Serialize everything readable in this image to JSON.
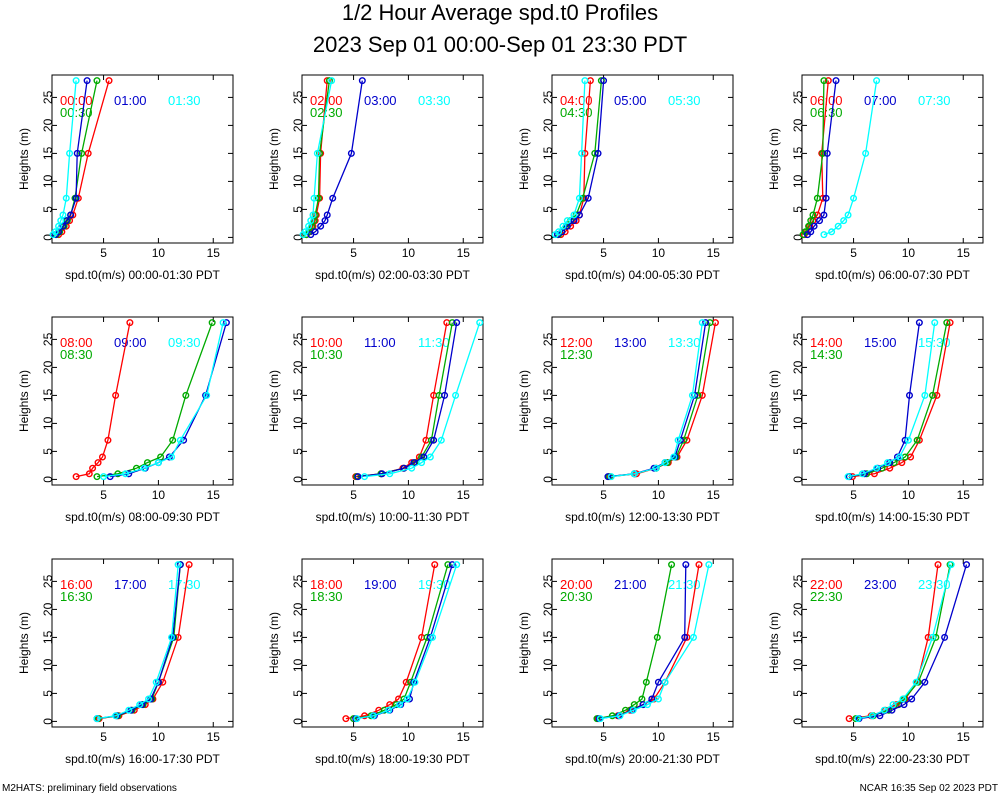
{
  "title_line1": "1/2 Hour Average spd.t0 Profiles",
  "title_line2": "2023 Sep 01 00:00-Sep 01 23:30 PDT",
  "footer_left": "M2HATS: preliminary field observations",
  "footer_right": "NCAR 16:35 Sep 02 2023 PDT",
  "colors": {
    "first": "#ff0000",
    "second": "#00aa00",
    "third": "#0000cc",
    "fourth": "#00ffff"
  },
  "chart_data": {
    "type": "line",
    "y_heights": [
      0.5,
      1,
      2,
      3,
      4,
      7,
      15,
      28
    ],
    "ylabel": "Heights (m)",
    "ylim": [
      -1,
      29
    ],
    "yticks": [
      0,
      5,
      10,
      15,
      20,
      25
    ],
    "xlim": [
      0.3,
      16.8
    ],
    "xticks": [
      5,
      10,
      15
    ],
    "panels": [
      {
        "xlabel": "spd.t0(m/s) 00:00-01:30 PDT",
        "series": [
          {
            "name": "00:00",
            "color": "#ff0000",
            "values": [
              0.9,
              1.2,
              1.6,
              1.9,
              2.2,
              2.7,
              3.6,
              5.5
            ]
          },
          {
            "name": "00:30",
            "color": "#00aa00",
            "values": [
              0.7,
              1.0,
              1.4,
              1.7,
              2.0,
              2.4,
              3.0,
              4.4
            ]
          },
          {
            "name": "01:00",
            "color": "#0000cc",
            "values": [
              0.6,
              0.9,
              1.3,
              1.6,
              2.0,
              2.5,
              2.6,
              3.5
            ]
          },
          {
            "name": "01:30",
            "color": "#00ffff",
            "values": [
              0.4,
              0.6,
              0.9,
              1.1,
              1.3,
              1.6,
              1.9,
              2.5
            ]
          }
        ]
      },
      {
        "xlabel": "spd.t0(m/s) 02:00-03:30 PDT",
        "series": [
          {
            "name": "02:00",
            "color": "#ff0000",
            "values": [
              0.7,
              1.0,
              1.3,
              1.5,
              1.6,
              1.9,
              2.0,
              2.6
            ]
          },
          {
            "name": "02:30",
            "color": "#00aa00",
            "values": [
              0.7,
              0.9,
              1.2,
              1.4,
              1.5,
              1.8,
              1.9,
              2.8
            ]
          },
          {
            "name": "03:00",
            "color": "#0000cc",
            "values": [
              1.1,
              1.5,
              2.0,
              2.4,
              2.6,
              3.1,
              4.8,
              5.8
            ]
          },
          {
            "name": "03:30",
            "color": "#00ffff",
            "values": [
              0.4,
              0.6,
              0.9,
              1.1,
              1.3,
              1.4,
              1.7,
              3.0
            ]
          }
        ]
      },
      {
        "xlabel": "spd.t0(m/s) 04:00-05:30 PDT",
        "series": [
          {
            "name": "04:00",
            "color": "#ff0000",
            "values": [
              1.1,
              1.5,
              2.0,
              2.5,
              2.8,
              3.2,
              3.3,
              3.8
            ]
          },
          {
            "name": "04:30",
            "color": "#00aa00",
            "values": [
              0.9,
              1.2,
              1.6,
              2.0,
              2.5,
              3.1,
              4.2,
              4.8
            ]
          },
          {
            "name": "05:00",
            "color": "#0000cc",
            "values": [
              0.8,
              1.2,
              1.7,
              2.3,
              2.8,
              3.6,
              4.5,
              5.0
            ]
          },
          {
            "name": "05:30",
            "color": "#00ffff",
            "values": [
              0.6,
              0.9,
              1.3,
              1.7,
              2.3,
              2.8,
              3.0,
              3.3
            ]
          }
        ]
      },
      {
        "xlabel": "spd.t0(m/s) 06:00-07:30 PDT",
        "series": [
          {
            "name": "06:00",
            "color": "#ff0000",
            "values": [
              0.5,
              0.7,
              1.0,
              1.3,
              1.7,
              2.2,
              2.1,
              2.7
            ]
          },
          {
            "name": "06:30",
            "color": "#00aa00",
            "values": [
              0.4,
              0.6,
              0.9,
              1.1,
              1.3,
              1.7,
              2.2,
              2.3
            ]
          },
          {
            "name": "07:00",
            "color": "#0000cc",
            "values": [
              0.8,
              1.1,
              1.4,
              1.9,
              2.3,
              2.5,
              2.6,
              3.4
            ]
          },
          {
            "name": "07:30",
            "color": "#00ffff",
            "values": [
              2.3,
              3.0,
              3.6,
              4.1,
              4.5,
              5.0,
              6.1,
              7.1
            ]
          }
        ]
      },
      {
        "xlabel": "spd.t0(m/s) 08:00-09:30 PDT",
        "series": [
          {
            "name": "08:00",
            "color": "#ff0000",
            "values": [
              2.5,
              3.7,
              4.0,
              4.5,
              4.9,
              5.4,
              6.1,
              7.4
            ]
          },
          {
            "name": "08:30",
            "color": "#00aa00",
            "values": [
              4.4,
              6.3,
              8.0,
              9.0,
              10.2,
              11.3,
              12.5,
              14.9
            ]
          },
          {
            "name": "09:00",
            "color": "#0000cc",
            "values": [
              5.6,
              7.3,
              8.8,
              10.0,
              11.0,
              12.3,
              14.3,
              16.2
            ]
          },
          {
            "name": "09:30",
            "color": "#00ffff",
            "values": [
              5.0,
              7.0,
              8.7,
              10.0,
              11.2,
              12.0,
              14.4,
              15.9
            ]
          }
        ]
      },
      {
        "xlabel": "spd.t0(m/s) 10:00-11:30 PDT",
        "series": [
          {
            "name": "10:00",
            "color": "#ff0000",
            "values": [
              5.2,
              7.5,
              9.5,
              10.3,
              11.0,
              11.6,
              12.3,
              13.5
            ]
          },
          {
            "name": "10:30",
            "color": "#00aa00",
            "values": [
              5.3,
              7.5,
              9.6,
              10.6,
              11.2,
              12.1,
              12.8,
              14.0
            ]
          },
          {
            "name": "11:00",
            "color": "#0000cc",
            "values": [
              5.4,
              7.6,
              9.6,
              10.5,
              11.4,
              12.3,
              13.3,
              14.4
            ]
          },
          {
            "name": "11:30",
            "color": "#00ffff",
            "values": [
              6.0,
              8.3,
              10.3,
              11.2,
              12.0,
              13.0,
              14.3,
              16.5
            ]
          }
        ]
      },
      {
        "xlabel": "spd.t0(m/s) 12:00-13:30 PDT",
        "series": [
          {
            "name": "12:00",
            "color": "#ff0000",
            "values": [
              5.6,
              8.0,
              9.8,
              10.9,
              11.7,
              12.6,
              14.0,
              15.2
            ]
          },
          {
            "name": "12:30",
            "color": "#00aa00",
            "values": [
              5.5,
              7.8,
              9.8,
              10.8,
              11.6,
              12.3,
              13.6,
              14.7
            ]
          },
          {
            "name": "13:00",
            "color": "#0000cc",
            "values": [
              5.4,
              7.8,
              9.6,
              10.6,
              11.5,
              12.0,
              13.3,
              14.3
            ]
          },
          {
            "name": "13:30",
            "color": "#00ffff",
            "values": [
              5.7,
              7.8,
              9.8,
              10.6,
              11.4,
              11.8,
              13.1,
              14.0
            ]
          }
        ]
      },
      {
        "xlabel": "spd.t0(m/s) 14:00-15:30 PDT",
        "series": [
          {
            "name": "14:00",
            "color": "#ff0000",
            "values": [
              4.9,
              6.9,
              8.3,
              9.4,
              10.2,
              11.0,
              12.6,
              13.8
            ]
          },
          {
            "name": "14:30",
            "color": "#00aa00",
            "values": [
              4.6,
              6.2,
              7.6,
              8.7,
              9.7,
              10.8,
              12.2,
              13.5
            ]
          },
          {
            "name": "15:00",
            "color": "#0000cc",
            "values": [
              4.6,
              6.0,
              7.2,
              8.3,
              9.0,
              9.7,
              10.1,
              11.0
            ]
          },
          {
            "name": "15:30",
            "color": "#00ffff",
            "values": [
              4.5,
              5.8,
              7.1,
              8.1,
              9.2,
              10.0,
              11.5,
              12.4
            ]
          }
        ]
      },
      {
        "xlabel": "spd.t0(m/s) 16:00-17:30 PDT",
        "series": [
          {
            "name": "16:00",
            "color": "#ff0000",
            "values": [
              4.6,
              6.4,
              7.8,
              8.8,
              9.5,
              10.4,
              11.8,
              12.8
            ]
          },
          {
            "name": "16:30",
            "color": "#00aa00",
            "values": [
              4.5,
              6.3,
              7.6,
              8.6,
              9.4,
              10.0,
              11.4,
              12.0
            ]
          },
          {
            "name": "17:00",
            "color": "#0000cc",
            "values": [
              4.4,
              6.2,
              7.5,
              8.5,
              9.3,
              10.0,
              11.3,
              12.0
            ]
          },
          {
            "name": "17:30",
            "color": "#00ffff",
            "values": [
              4.4,
              6.1,
              7.3,
              8.3,
              9.1,
              9.8,
              11.2,
              11.8
            ]
          }
        ]
      },
      {
        "xlabel": "spd.t0(m/s) 18:00-19:30 PDT",
        "series": [
          {
            "name": "18:00",
            "color": "#ff0000",
            "values": [
              4.3,
              6.0,
              7.3,
              8.3,
              9.1,
              9.8,
              11.2,
              12.4
            ]
          },
          {
            "name": "18:30",
            "color": "#00aa00",
            "values": [
              5.0,
              6.6,
              7.8,
              8.9,
              9.6,
              10.2,
              11.7,
              13.6
            ]
          },
          {
            "name": "19:00",
            "color": "#0000cc",
            "values": [
              5.2,
              6.9,
              8.3,
              9.3,
              10.1,
              10.5,
              12.0,
              14.0
            ]
          },
          {
            "name": "19:30",
            "color": "#00ffff",
            "values": [
              5.3,
              6.8,
              8.2,
              9.2,
              9.9,
              10.6,
              12.2,
              14.4
            ]
          }
        ]
      },
      {
        "xlabel": "spd.t0(m/s) 20:00-21:30 PDT",
        "series": [
          {
            "name": "20:00",
            "color": "#ff0000",
            "values": [
              4.5,
              6.3,
              7.4,
              8.6,
              9.6,
              10.6,
              12.6,
              13.7
            ]
          },
          {
            "name": "20:30",
            "color": "#00aa00",
            "values": [
              4.4,
              5.8,
              7.0,
              7.8,
              8.5,
              8.9,
              9.9,
              11.2
            ]
          },
          {
            "name": "21:00",
            "color": "#0000cc",
            "values": [
              4.6,
              6.4,
              7.6,
              8.6,
              9.4,
              10.0,
              12.4,
              12.5
            ]
          },
          {
            "name": "21:30",
            "color": "#00ffff",
            "values": [
              4.7,
              6.5,
              7.7,
              9.0,
              10.0,
              10.6,
              13.2,
              14.6
            ]
          }
        ]
      },
      {
        "xlabel": "spd.t0(m/s) 22:00-23:30 PDT",
        "series": [
          {
            "name": "22:00",
            "color": "#ff0000",
            "values": [
              4.6,
              6.6,
              7.9,
              8.9,
              9.7,
              10.8,
              11.8,
              12.7
            ]
          },
          {
            "name": "22:30",
            "color": "#00aa00",
            "values": [
              5.2,
              6.8,
              8.2,
              9.1,
              9.6,
              10.9,
              12.5,
              13.8
            ]
          },
          {
            "name": "23:00",
            "color": "#0000cc",
            "values": [
              5.5,
              7.4,
              8.5,
              9.6,
              10.3,
              11.5,
              13.3,
              15.3
            ]
          },
          {
            "name": "23:30",
            "color": "#00ffff",
            "values": [
              5.4,
              6.7,
              7.8,
              8.6,
              9.5,
              10.7,
              12.2,
              13.9
            ]
          }
        ]
      }
    ]
  }
}
